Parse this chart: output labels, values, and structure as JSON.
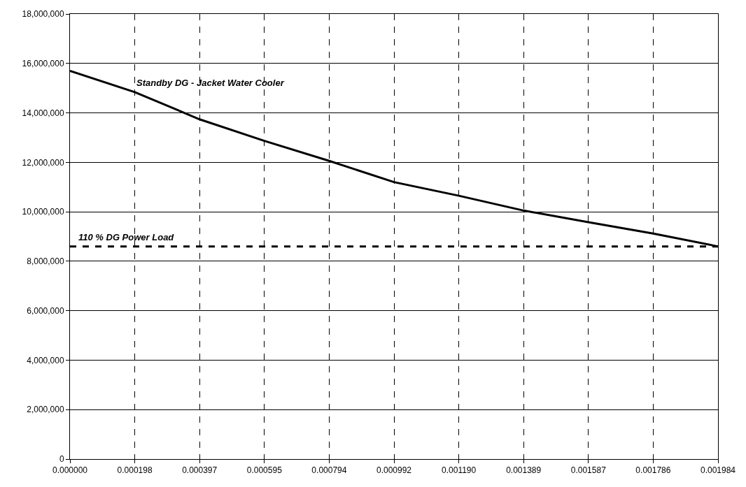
{
  "chart_data": {
    "type": "line",
    "categories": [
      "0.000000",
      "0.000198",
      "0.000397",
      "0.000595",
      "0.000794",
      "0.000992",
      "0.001190",
      "0.001389",
      "0.001587",
      "0.001786",
      "0.001984"
    ],
    "series": [
      {
        "name": "Standby DG - Jacket Water Cooler",
        "color": "#000000",
        "values": [
          15700000,
          14840000,
          13740000,
          12870000,
          12060000,
          11200000,
          10650000,
          10050000,
          9580000,
          9120000,
          8600000
        ]
      }
    ],
    "ylim": [
      0,
      18000000
    ],
    "yticks": [
      {
        "value": 0,
        "label": "0"
      },
      {
        "value": 2000000,
        "label": "2,000,000"
      },
      {
        "value": 4000000,
        "label": "4,000,000"
      },
      {
        "value": 6000000,
        "label": "6,000,000"
      },
      {
        "value": 8000000,
        "label": "8,000,000"
      },
      {
        "value": 10000000,
        "label": "10,000,000"
      },
      {
        "value": 12000000,
        "label": "12,000,000"
      },
      {
        "value": 14000000,
        "label": "14,000,000"
      },
      {
        "value": 16000000,
        "label": "16,000,000"
      },
      {
        "value": 18000000,
        "label": "18,000,000"
      }
    ],
    "ref_lines": [
      {
        "axis": "y",
        "value": 8600000,
        "label": "110 % DG Power Load",
        "color": "#000000",
        "line_style": "dashed"
      }
    ],
    "grid": true,
    "legend": false,
    "marker": "none",
    "line_style": "solid"
  }
}
